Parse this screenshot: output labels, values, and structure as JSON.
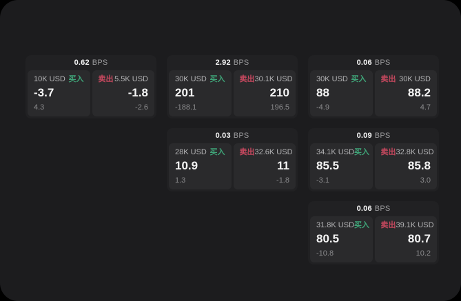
{
  "screen": {
    "description": "Dark trading quote board with six BPS spread cards"
  },
  "labels": {
    "bps_unit": "BPS",
    "buy": "买入",
    "sell": "卖出"
  },
  "colors": {
    "page_bg": "#000000",
    "panel_bg": "#1c1c1e",
    "card_bg": "#212123",
    "subpanel_bg": "#2a2a2c",
    "value_white": "#f5f5f5",
    "label_gray": "#b4b4b6",
    "muted_gray": "#8b8b8d",
    "bps_gray": "#9c9c9e",
    "buy_green": "#3fa478",
    "sell_red": "#c5485e"
  },
  "cards": [
    {
      "bps": "0.62",
      "buy": {
        "size": "10K USD",
        "price": "-3.7",
        "change": "4.3"
      },
      "sell": {
        "size": "5.5K USD",
        "price": "-1.8",
        "change": "-2.6"
      }
    },
    {
      "bps": "2.92",
      "buy": {
        "size": "30K USD",
        "price": "201",
        "change": "-188.1"
      },
      "sell": {
        "size": "30.1K USD",
        "price": "210",
        "change": "196.5"
      }
    },
    {
      "bps": "0.06",
      "buy": {
        "size": "30K USD",
        "price": "88",
        "change": "-4.9"
      },
      "sell": {
        "size": "30K USD",
        "price": "88.2",
        "change": "4.7"
      }
    },
    {
      "bps": "0.03",
      "buy": {
        "size": "28K USD",
        "price": "10.9",
        "change": "1.3"
      },
      "sell": {
        "size": "32.6K USD",
        "price": "11",
        "change": "-1.8"
      }
    },
    {
      "bps": "0.09",
      "buy": {
        "size": "34.1K USD",
        "price": "85.5",
        "change": "-3.1"
      },
      "sell": {
        "size": "32.8K USD",
        "price": "85.8",
        "change": "3.0"
      }
    },
    {
      "bps": "0.06",
      "buy": {
        "size": "31.8K USD",
        "price": "80.5",
        "change": "-10.8"
      },
      "sell": {
        "size": "39.1K USD",
        "price": "80.7",
        "change": "10.2"
      }
    }
  ]
}
